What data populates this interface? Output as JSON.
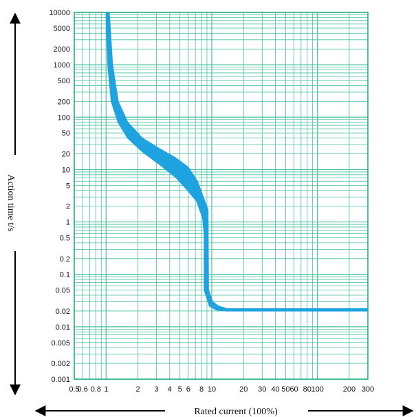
{
  "chart_data": {
    "type": "area",
    "xlabel": "Rated current (100%)",
    "ylabel": "Action time t/s",
    "x_scale": "log",
    "y_scale": "log",
    "xlim": [
      0.5,
      300
    ],
    "ylim": [
      0.001,
      10000
    ],
    "grid": true,
    "x_ticks": [
      {
        "v": 0.5,
        "label": "0.5"
      },
      {
        "v": 0.6,
        "label": "0.6"
      },
      {
        "v": 0.8,
        "label": "0.8"
      },
      {
        "v": 1,
        "label": "1"
      },
      {
        "v": 2,
        "label": "2"
      },
      {
        "v": 3,
        "label": "3"
      },
      {
        "v": 4,
        "label": "4"
      },
      {
        "v": 5,
        "label": "5"
      },
      {
        "v": 6,
        "label": "6"
      },
      {
        "v": 8,
        "label": "8"
      },
      {
        "v": 10,
        "label": "10"
      },
      {
        "v": 20,
        "label": "20"
      },
      {
        "v": 30,
        "label": "30"
      },
      {
        "v": 40,
        "label": "40"
      },
      {
        "v": 50,
        "label": "50"
      },
      {
        "v": 60,
        "label": "60"
      },
      {
        "v": 80,
        "label": "80"
      },
      {
        "v": 100,
        "label": "100"
      },
      {
        "v": 200,
        "label": "200"
      },
      {
        "v": 300,
        "label": "300"
      }
    ],
    "y_ticks": [
      {
        "v": 10000,
        "label": "10000"
      },
      {
        "v": 5000,
        "label": "5000"
      },
      {
        "v": 2000,
        "label": "2000"
      },
      {
        "v": 1000,
        "label": "1000"
      },
      {
        "v": 500,
        "label": "500"
      },
      {
        "v": 200,
        "label": "200"
      },
      {
        "v": 100,
        "label": "100"
      },
      {
        "v": 50,
        "label": "50"
      },
      {
        "v": 20,
        "label": "20"
      },
      {
        "v": 10,
        "label": "10"
      },
      {
        "v": 5,
        "label": "5"
      },
      {
        "v": 2,
        "label": "2"
      },
      {
        "v": 1,
        "label": "1"
      },
      {
        "v": 0.5,
        "label": "0.5"
      },
      {
        "v": 0.2,
        "label": "0.2"
      },
      {
        "v": 0.1,
        "label": "0.1"
      },
      {
        "v": 0.05,
        "label": "0.05"
      },
      {
        "v": 0.02,
        "label": "0.02"
      },
      {
        "v": 0.01,
        "label": "0.01"
      },
      {
        "v": 0.005,
        "label": "0.005"
      },
      {
        "v": 0.002,
        "label": "0.002"
      },
      {
        "v": 0.001,
        "label": "0.001"
      }
    ],
    "series": [
      {
        "color": "#1fa3e0",
        "upper": [
          [
            1.07,
            10000
          ],
          [
            1.15,
            1000
          ],
          [
            1.3,
            200
          ],
          [
            1.6,
            80
          ],
          [
            2.2,
            40
          ],
          [
            3.2,
            25
          ],
          [
            4.5,
            17
          ],
          [
            6,
            11
          ],
          [
            7.3,
            6
          ],
          [
            8.3,
            3
          ],
          [
            9.2,
            1.7
          ],
          [
            9.3,
            0.05
          ],
          [
            10.2,
            0.03
          ],
          [
            11.5,
            0.025
          ],
          [
            14,
            0.022
          ],
          [
            300,
            0.022
          ]
        ],
        "lower": [
          [
            1.0,
            10000
          ],
          [
            1.04,
            1000
          ],
          [
            1.12,
            200
          ],
          [
            1.3,
            80
          ],
          [
            1.6,
            40
          ],
          [
            2.2,
            22
          ],
          [
            3.3,
            12
          ],
          [
            4.6,
            7
          ],
          [
            5.8,
            4.2
          ],
          [
            7.2,
            2.5
          ],
          [
            8.2,
            1.2
          ],
          [
            8.5,
            0.6
          ],
          [
            8.5,
            0.05
          ],
          [
            9.5,
            0.025
          ],
          [
            11,
            0.021
          ],
          [
            14,
            0.02
          ],
          [
            300,
            0.02
          ]
        ]
      }
    ]
  }
}
